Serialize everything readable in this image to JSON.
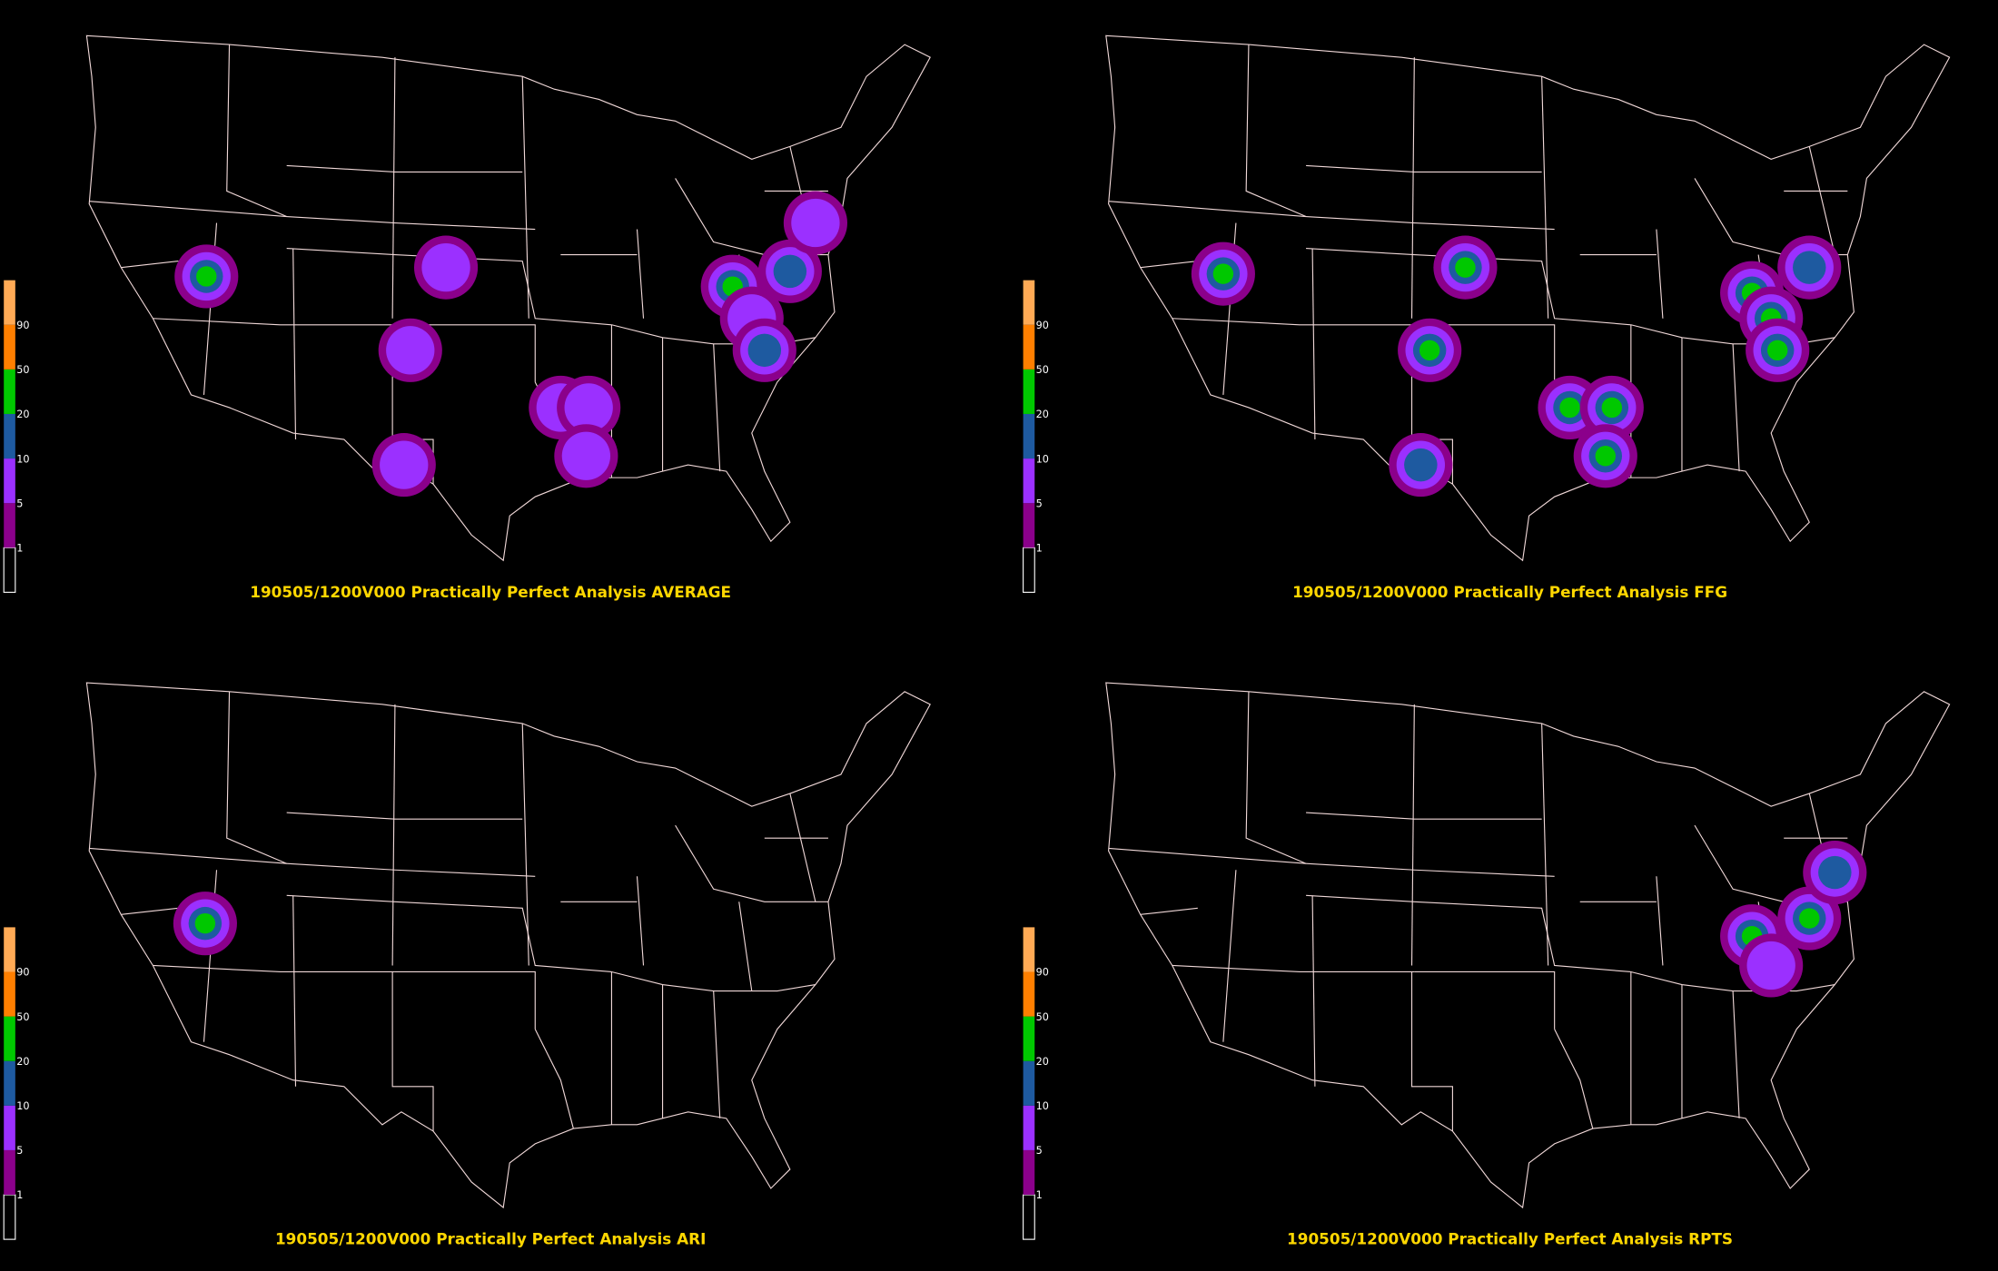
{
  "legend_labels": [
    "1",
    "5",
    "10",
    "20",
    "50",
    "90"
  ],
  "panels": [
    {
      "title": "190505/1200V000 Practically Perfect Analysis AVERAGE"
    },
    {
      "title": "190505/1200V000 Practically Perfect Analysis FFG"
    },
    {
      "title": "190505/1200V000 Practically Perfect Analysis ARI"
    },
    {
      "title": "190505/1200V000 Practically Perfect Analysis RPTS"
    }
  ]
}
